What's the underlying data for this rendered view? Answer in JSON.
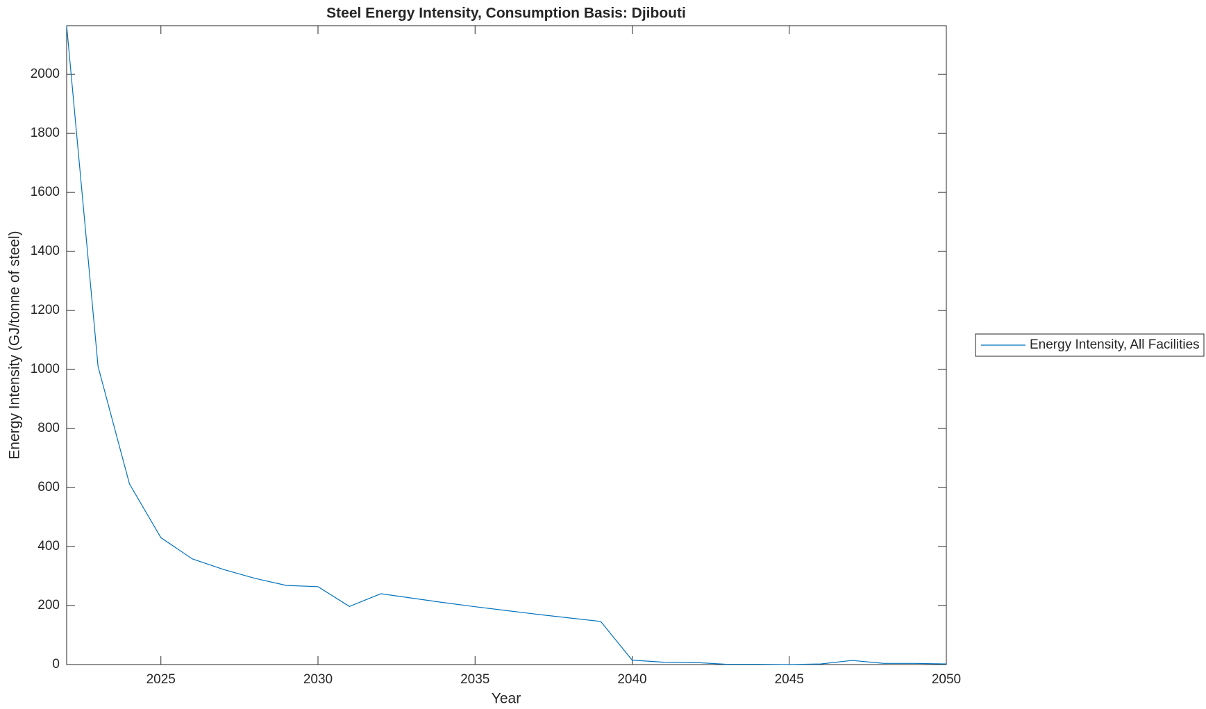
{
  "chart_data": {
    "type": "line",
    "title": "Steel Energy Intensity, Consumption Basis: Djibouti",
    "x_label": "Year",
    "y_label": "Energy Intensity (GJ/tonne of steel)",
    "x": [
      2022,
      2023,
      2024,
      2025,
      2026,
      2027,
      2028,
      2029,
      2030,
      2031,
      2032,
      2033,
      2034,
      2035,
      2036,
      2037,
      2038,
      2039,
      2040,
      2041,
      2042,
      2043,
      2044,
      2045,
      2046,
      2047,
      2048,
      2049,
      2050
    ],
    "series": [
      {
        "name": "Energy Intensity, All Facilities",
        "color": "#0072bd",
        "values": [
          2165,
          1010,
          612,
          430,
          358,
          322,
          292,
          268,
          264,
          197,
          240,
          225,
          210,
          196,
          183,
          170,
          158,
          146,
          15,
          8,
          7,
          1,
          1,
          0,
          2,
          14,
          4,
          4,
          2
        ]
      }
    ],
    "xlim": [
      2022,
      2050
    ],
    "xticks": [
      2025,
      2030,
      2035,
      2040,
      2045,
      2050
    ],
    "ylim": [
      0,
      2165
    ],
    "yticks": [
      0,
      200,
      400,
      600,
      800,
      1000,
      1200,
      1400,
      1600,
      1800,
      2000
    ],
    "legend": "right"
  }
}
